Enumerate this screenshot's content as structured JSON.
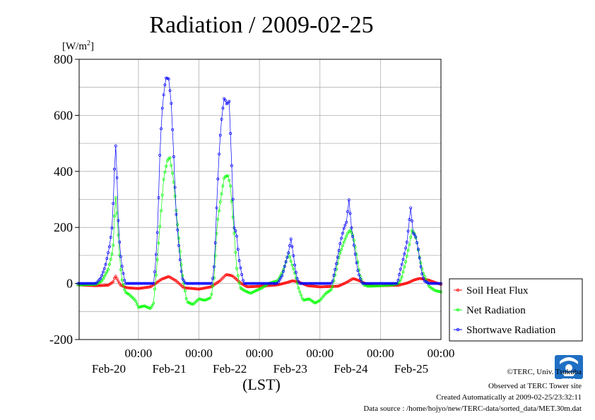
{
  "chart_data": {
    "type": "line",
    "title": "Radiation / 2009-02-25",
    "ylabel_prefix": "[W/m",
    "ylabel_sup": "2",
    "ylabel_suffix": "]",
    "xlabel": "(LST)",
    "ylim": [
      -200,
      800
    ],
    "yticks": [
      "800",
      "600",
      "400",
      "200",
      "0",
      "-200"
    ],
    "x_days": [
      "Feb-20",
      "Feb-21",
      "Feb-22",
      "Feb-23",
      "Feb-24",
      "Feb-25"
    ],
    "x_time_label": "00:00",
    "x_range_days": [
      -0.98,
      5.0
    ],
    "grid": true,
    "legend_position": "bottom-right outside",
    "series": [
      {
        "name": "Soil Heat Flux",
        "color": "#ff0000",
        "points": [
          [
            -1.0,
            -5
          ],
          [
            -0.7,
            -8
          ],
          [
            -0.5,
            -6
          ],
          [
            -0.42,
            5
          ],
          [
            -0.38,
            28
          ],
          [
            -0.35,
            15
          ],
          [
            -0.3,
            -5
          ],
          [
            -0.2,
            -15
          ],
          [
            0.0,
            -18
          ],
          [
            0.2,
            -12
          ],
          [
            0.38,
            15
          ],
          [
            0.5,
            25
          ],
          [
            0.62,
            10
          ],
          [
            0.75,
            -15
          ],
          [
            1.0,
            -20
          ],
          [
            1.2,
            -12
          ],
          [
            1.35,
            10
          ],
          [
            1.45,
            32
          ],
          [
            1.55,
            28
          ],
          [
            1.7,
            0
          ],
          [
            1.8,
            -12
          ],
          [
            2.0,
            -10
          ],
          [
            2.3,
            -5
          ],
          [
            2.45,
            3
          ],
          [
            2.55,
            10
          ],
          [
            2.65,
            5
          ],
          [
            2.8,
            -8
          ],
          [
            3.0,
            -12
          ],
          [
            3.3,
            -10
          ],
          [
            3.45,
            5
          ],
          [
            3.55,
            18
          ],
          [
            3.65,
            10
          ],
          [
            3.8,
            -5
          ],
          [
            4.0,
            -8
          ],
          [
            4.3,
            -6
          ],
          [
            4.45,
            2
          ],
          [
            4.55,
            12
          ],
          [
            4.65,
            18
          ],
          [
            4.8,
            12
          ],
          [
            4.95,
            0
          ],
          [
            5.0,
            -3
          ]
        ]
      },
      {
        "name": "Net Radiation",
        "color": "#00ff00",
        "points": [
          [
            -1.0,
            -5
          ],
          [
            -0.7,
            -3
          ],
          [
            -0.6,
            10
          ],
          [
            -0.5,
            50
          ],
          [
            -0.42,
            120
          ],
          [
            -0.38,
            320
          ],
          [
            -0.35,
            240
          ],
          [
            -0.32,
            120
          ],
          [
            -0.28,
            20
          ],
          [
            -0.22,
            -30
          ],
          [
            -0.15,
            -40
          ],
          [
            -0.05,
            -60
          ],
          [
            0.0,
            -85
          ],
          [
            0.1,
            -80
          ],
          [
            0.2,
            -90
          ],
          [
            0.25,
            -70
          ],
          [
            0.3,
            50
          ],
          [
            0.36,
            220
          ],
          [
            0.42,
            380
          ],
          [
            0.48,
            440
          ],
          [
            0.52,
            450
          ],
          [
            0.58,
            370
          ],
          [
            0.65,
            200
          ],
          [
            0.72,
            40
          ],
          [
            0.8,
            -65
          ],
          [
            0.9,
            -75
          ],
          [
            1.0,
            -55
          ],
          [
            1.1,
            -60
          ],
          [
            1.2,
            -50
          ],
          [
            1.25,
            20
          ],
          [
            1.3,
            210
          ],
          [
            1.36,
            300
          ],
          [
            1.42,
            380
          ],
          [
            1.48,
            385
          ],
          [
            1.52,
            350
          ],
          [
            1.58,
            190
          ],
          [
            1.62,
            60
          ],
          [
            1.68,
            -15
          ],
          [
            1.75,
            -25
          ],
          [
            1.85,
            -35
          ],
          [
            1.95,
            -25
          ],
          [
            2.05,
            -15
          ],
          [
            2.15,
            0
          ],
          [
            2.3,
            10
          ],
          [
            2.38,
            40
          ],
          [
            2.43,
            70
          ],
          [
            2.48,
            110
          ],
          [
            2.52,
            80
          ],
          [
            2.58,
            40
          ],
          [
            2.65,
            -20
          ],
          [
            2.72,
            -60
          ],
          [
            2.82,
            -55
          ],
          [
            2.92,
            -70
          ],
          [
            3.0,
            -60
          ],
          [
            3.1,
            -35
          ],
          [
            3.2,
            -20
          ],
          [
            3.25,
            30
          ],
          [
            3.32,
            100
          ],
          [
            3.4,
            150
          ],
          [
            3.46,
            180
          ],
          [
            3.5,
            190
          ],
          [
            3.55,
            170
          ],
          [
            3.6,
            110
          ],
          [
            3.66,
            30
          ],
          [
            3.72,
            -5
          ],
          [
            3.8,
            -10
          ],
          [
            4.0,
            -8
          ],
          [
            4.2,
            -5
          ],
          [
            4.3,
            0
          ],
          [
            4.35,
            20
          ],
          [
            4.42,
            80
          ],
          [
            4.48,
            140
          ],
          [
            4.52,
            190
          ],
          [
            4.56,
            180
          ],
          [
            4.6,
            150
          ],
          [
            4.64,
            100
          ],
          [
            4.7,
            40
          ],
          [
            4.8,
            -10
          ],
          [
            4.9,
            -25
          ],
          [
            5.0,
            -30
          ]
        ]
      },
      {
        "name": "Shortwave Radiation",
        "color": "#0000ff",
        "points": [
          [
            -1.0,
            0
          ],
          [
            -0.7,
            0
          ],
          [
            -0.62,
            20
          ],
          [
            -0.55,
            60
          ],
          [
            -0.48,
            130
          ],
          [
            -0.43,
            210
          ],
          [
            -0.4,
            380
          ],
          [
            -0.38,
            515
          ],
          [
            -0.36,
            420
          ],
          [
            -0.33,
            200
          ],
          [
            -0.3,
            110
          ],
          [
            -0.27,
            60
          ],
          [
            -0.22,
            0
          ],
          [
            -0.1,
            0
          ],
          [
            0.25,
            0
          ],
          [
            0.28,
            60
          ],
          [
            0.32,
            210
          ],
          [
            0.36,
            500
          ],
          [
            0.4,
            640
          ],
          [
            0.43,
            700
          ],
          [
            0.46,
            735
          ],
          [
            0.5,
            730
          ],
          [
            0.54,
            650
          ],
          [
            0.58,
            470
          ],
          [
            0.62,
            260
          ],
          [
            0.68,
            100
          ],
          [
            0.72,
            20
          ],
          [
            0.78,
            0
          ],
          [
            1.0,
            0
          ],
          [
            1.22,
            0
          ],
          [
            1.26,
            80
          ],
          [
            1.3,
            320
          ],
          [
            1.34,
            490
          ],
          [
            1.38,
            600
          ],
          [
            1.42,
            665
          ],
          [
            1.46,
            640
          ],
          [
            1.5,
            650
          ],
          [
            1.54,
            430
          ],
          [
            1.58,
            200
          ],
          [
            1.62,
            180
          ],
          [
            1.66,
            90
          ],
          [
            1.7,
            40
          ],
          [
            1.74,
            0
          ],
          [
            2.0,
            0
          ],
          [
            2.3,
            0
          ],
          [
            2.38,
            30
          ],
          [
            2.44,
            80
          ],
          [
            2.48,
            110
          ],
          [
            2.52,
            160
          ],
          [
            2.55,
            120
          ],
          [
            2.58,
            70
          ],
          [
            2.62,
            20
          ],
          [
            2.66,
            0
          ],
          [
            3.0,
            0
          ],
          [
            3.2,
            0
          ],
          [
            3.28,
            80
          ],
          [
            3.34,
            150
          ],
          [
            3.4,
            200
          ],
          [
            3.44,
            220
          ],
          [
            3.48,
            300
          ],
          [
            3.52,
            200
          ],
          [
            3.56,
            140
          ],
          [
            3.62,
            50
          ],
          [
            3.66,
            20
          ],
          [
            3.7,
            0
          ],
          [
            4.0,
            0
          ],
          [
            4.28,
            0
          ],
          [
            4.32,
            40
          ],
          [
            4.38,
            90
          ],
          [
            4.44,
            150
          ],
          [
            4.5,
            270
          ],
          [
            4.54,
            180
          ],
          [
            4.58,
            170
          ],
          [
            4.62,
            130
          ],
          [
            4.68,
            40
          ],
          [
            4.72,
            10
          ],
          [
            4.8,
            0
          ],
          [
            5.0,
            0
          ]
        ]
      }
    ]
  },
  "credits": {
    "copyright": "©TERC, Univ. Tsukuba",
    "observed": "Observed at TERC Tower site",
    "created": "Created Automatically at 2009-02-25/23:32:11",
    "source": "Data source : /home/hojyo/new/TERC-data/sorted_data/MET.30m.dat"
  },
  "logo": {
    "icon": "terc-logo-icon",
    "text": "TERC"
  }
}
